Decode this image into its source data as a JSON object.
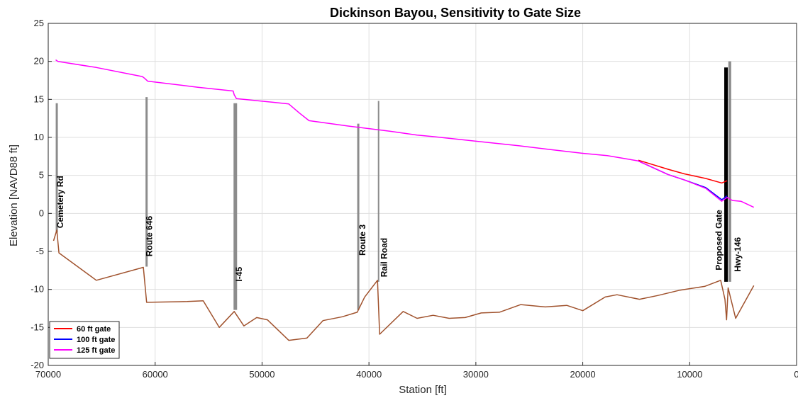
{
  "chart_data": {
    "type": "line",
    "title": "Dickinson Bayou, Sensitivity to Gate Size",
    "xlabel": "Station [ft]",
    "ylabel": "Elevation [NAVD88 ft]",
    "xlim": [
      70000,
      0
    ],
    "ylim": [
      -20,
      25
    ],
    "x_reversed": true,
    "grid": true,
    "legend_position": "bottom-left",
    "x_ticks": [
      70000,
      60000,
      50000,
      40000,
      30000,
      20000,
      10000,
      0
    ],
    "x_tick_labels": [
      "70000",
      "60000",
      "50000",
      "40000",
      "30000",
      "20000",
      "10000",
      "0"
    ],
    "y_ticks": [
      -20,
      -15,
      -10,
      -5,
      0,
      5,
      10,
      15,
      20,
      25
    ],
    "y_tick_labels": [
      "-20",
      "-15",
      "-10",
      "-5",
      "0",
      "5",
      "10",
      "15",
      "20",
      "25"
    ],
    "series": [
      {
        "name": "60 ft gate",
        "color": "#ff0000",
        "x": [
          14800,
          12000,
          10500,
          8500,
          7000,
          6500
        ],
        "y": [
          7.0,
          5.8,
          5.2,
          4.6,
          4.0,
          4.3
        ]
      },
      {
        "name": "100 ft gate",
        "color": "#0000ff",
        "x": [
          14800,
          12000,
          10500,
          8500,
          7000,
          6500
        ],
        "y": [
          6.9,
          5.1,
          4.4,
          3.4,
          1.8,
          2.3
        ]
      },
      {
        "name": "125 ft gate",
        "color": "#ff00ff",
        "x": [
          69300,
          69100,
          65500,
          61200,
          61000,
          60700,
          56000,
          52700,
          52600,
          52400,
          49500,
          47500,
          46500,
          45600,
          42000,
          38000,
          35500,
          34000,
          30000,
          26000,
          23000,
          20000,
          17700,
          16000,
          14800,
          12000,
          10500,
          8500,
          7000,
          6500,
          6000,
          5200,
          4000
        ],
        "y": [
          20.2,
          20.0,
          19.2,
          18.0,
          17.8,
          17.4,
          16.6,
          16.1,
          15.6,
          15.1,
          14.7,
          14.4,
          13.2,
          12.2,
          11.5,
          10.8,
          10.3,
          10.1,
          9.5,
          8.9,
          8.4,
          7.9,
          7.6,
          7.2,
          6.9,
          5.1,
          4.4,
          3.3,
          1.6,
          2.1,
          1.7,
          1.6,
          0.8
        ]
      },
      {
        "name": "",
        "color": "#a0522d",
        "x": [
          69500,
          69200,
          69000,
          65500,
          61100,
          60800,
          57000,
          55500,
          54000,
          52600,
          51700,
          50500,
          49500,
          47500,
          45800,
          44300,
          42500,
          41100,
          40400,
          39200,
          39000,
          36800,
          35500,
          34000,
          32500,
          31000,
          29500,
          27800,
          25800,
          23500,
          21500,
          20000,
          17900,
          16800,
          14700,
          13000,
          10900,
          8600,
          7100,
          6700,
          6550,
          6400,
          5700,
          4000
        ],
        "y": [
          -3.6,
          -2.2,
          -5.2,
          -8.8,
          -7.1,
          -11.7,
          -11.6,
          -11.5,
          -15.0,
          -12.9,
          -14.8,
          -13.7,
          -14.0,
          -16.7,
          -16.4,
          -14.1,
          -13.6,
          -13.0,
          -11.0,
          -8.8,
          -15.9,
          -12.9,
          -13.8,
          -13.4,
          -13.8,
          -13.7,
          -13.1,
          -13.0,
          -12.0,
          -12.3,
          -12.1,
          -12.8,
          -11.0,
          -10.7,
          -11.3,
          -10.8,
          -10.1,
          -9.6,
          -8.8,
          -11.3,
          -14.0,
          -9.8,
          -13.8,
          -9.5
        ]
      }
    ],
    "vertical_markers": [
      {
        "label": "Cemetery Rd",
        "x": 69200,
        "y_top": 14.5,
        "y_bottom": -2.5,
        "color": "#8c8c8c",
        "width": 3
      },
      {
        "label": "Route 646",
        "x": 60800,
        "y_top": 15.3,
        "y_bottom": -7.0,
        "color": "#8c8c8c",
        "width": 3
      },
      {
        "label": "I-45",
        "x": 52500,
        "y_top": 14.5,
        "y_bottom": -12.7,
        "color": "#8c8c8c",
        "width": 5
      },
      {
        "label": "Route 3",
        "x": 41000,
        "y_top": 11.8,
        "y_bottom": -12.7,
        "color": "#8c8c8c",
        "width": 3
      },
      {
        "label": "Rail Road",
        "x": 39100,
        "y_top": 14.8,
        "y_bottom": -9.0,
        "color": "#8c8c8c",
        "width": 2
      },
      {
        "label": "Proposed Gate",
        "x": 6600,
        "y_top": 19.2,
        "y_bottom": -9.0,
        "color": "#000000",
        "width": 5
      },
      {
        "label": "Hwy-146",
        "x": 6250,
        "y_top": 20.0,
        "y_bottom": -9.0,
        "color": "#8c8c8c",
        "width": 4
      }
    ]
  }
}
